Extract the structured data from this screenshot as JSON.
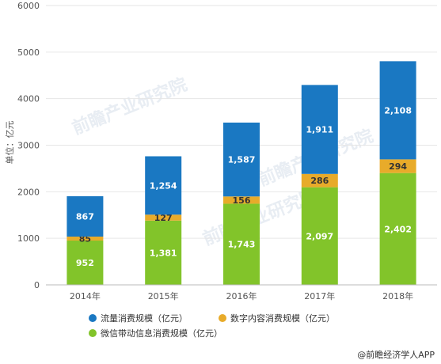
{
  "chart_data": {
    "type": "bar",
    "stacked": true,
    "categories": [
      "2014年",
      "2015年",
      "2016年",
      "2017年",
      "2018年"
    ],
    "series": [
      {
        "name": "微信带动信息消费规模（亿元）",
        "values": [
          952,
          1381,
          1743,
          2097,
          2402
        ],
        "labels": [
          "952",
          "1,381",
          "1,743",
          "2,097",
          "2,402"
        ],
        "color": "#82c42a"
      },
      {
        "name": "数字内容消费规模（亿元）",
        "values": [
          85,
          127,
          156,
          286,
          294
        ],
        "labels": [
          "85",
          "127",
          "156",
          "286",
          "294"
        ],
        "color": "#e8ab2a"
      },
      {
        "name": "流量消费规模（亿元）",
        "values": [
          867,
          1254,
          1587,
          1911,
          2108
        ],
        "labels": [
          "867",
          "1,254",
          "1,587",
          "1,911",
          "2,108"
        ],
        "color": "#1a78c2"
      }
    ],
    "ylabel": "单位：亿元",
    "ylim": [
      0,
      6000
    ],
    "yticks": [
      0,
      1000,
      2000,
      3000,
      4000,
      5000,
      6000
    ],
    "grid": true,
    "legend": "bottom",
    "legend_order": [
      2,
      1,
      0
    ]
  },
  "source": "@前瞻经济学人APP",
  "watermark": "前瞻产业研究院",
  "colors": {
    "axis": "#bbbbbb",
    "grid": "#e6e6e6"
  }
}
